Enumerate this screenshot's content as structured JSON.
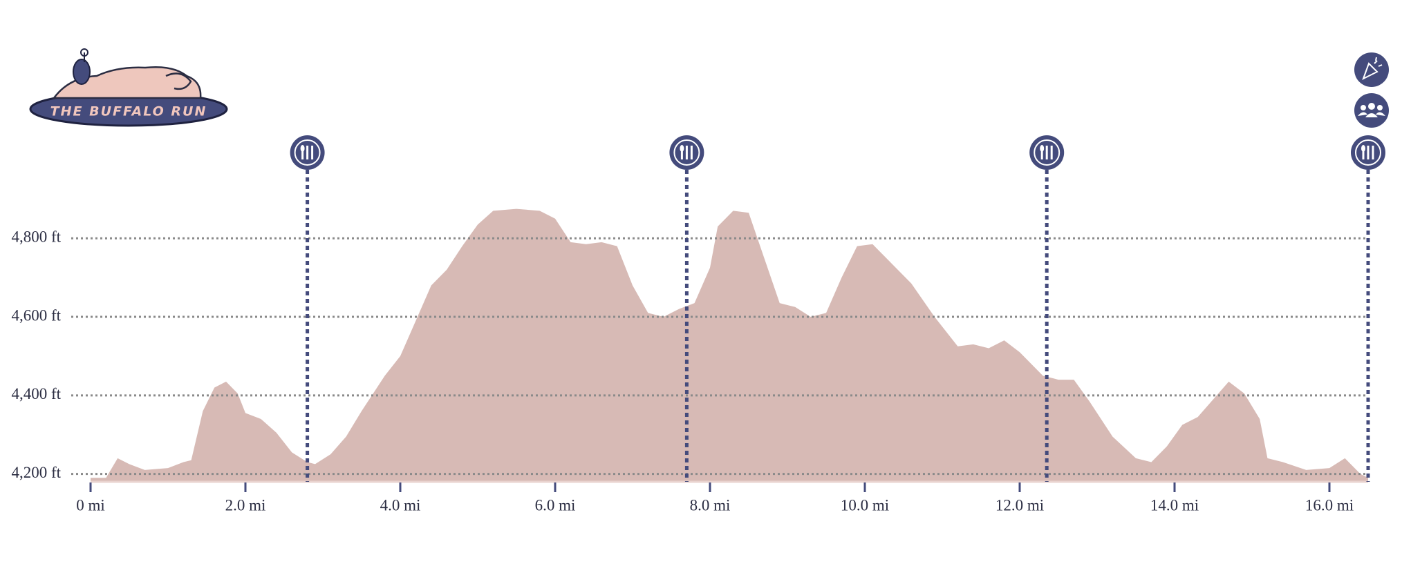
{
  "chart_data": {
    "type": "area",
    "logo_text": "THE BUFFALO RUN",
    "x": [
      0,
      0.2,
      0.35,
      0.5,
      0.7,
      1.0,
      1.2,
      1.3,
      1.45,
      1.6,
      1.75,
      1.9,
      2.0,
      2.2,
      2.4,
      2.6,
      2.8,
      2.9,
      3.1,
      3.3,
      3.5,
      3.8,
      4.0,
      4.2,
      4.4,
      4.6,
      4.8,
      5.0,
      5.2,
      5.5,
      5.8,
      6.0,
      6.2,
      6.4,
      6.6,
      6.8,
      7.0,
      7.2,
      7.4,
      7.6,
      7.8,
      8.0,
      8.1,
      8.3,
      8.5,
      8.7,
      8.9,
      9.1,
      9.3,
      9.5,
      9.7,
      9.9,
      10.1,
      10.3,
      10.6,
      10.9,
      11.2,
      11.4,
      11.6,
      11.8,
      12.0,
      12.3,
      12.5,
      12.7,
      12.9,
      13.2,
      13.5,
      13.7,
      13.9,
      14.1,
      14.3,
      14.5,
      14.7,
      14.9,
      15.1,
      15.2,
      15.4,
      15.7,
      16.0,
      16.2,
      16.4,
      16.5
    ],
    "values": [
      4190,
      4190,
      4240,
      4225,
      4210,
      4215,
      4230,
      4235,
      4360,
      4420,
      4435,
      4405,
      4355,
      4340,
      4305,
      4255,
      4230,
      4225,
      4250,
      4295,
      4360,
      4450,
      4500,
      4590,
      4680,
      4720,
      4780,
      4835,
      4870,
      4875,
      4870,
      4850,
      4790,
      4785,
      4790,
      4780,
      4680,
      4610,
      4600,
      4620,
      4635,
      4725,
      4830,
      4870,
      4865,
      4750,
      4635,
      4625,
      4600,
      4610,
      4700,
      4780,
      4785,
      4745,
      4685,
      4600,
      4525,
      4530,
      4520,
      4540,
      4510,
      4450,
      4440,
      4440,
      4385,
      4295,
      4240,
      4230,
      4270,
      4325,
      4345,
      4390,
      4435,
      4405,
      4340,
      4240,
      4230,
      4210,
      4215,
      4240,
      4200,
      4190
    ],
    "color": "#d7bab5",
    "marker_color": "#444b7c",
    "xlim": [
      0,
      16.5
    ],
    "ylim": [
      4180,
      5050
    ],
    "xticks": [
      {
        "value": 0,
        "label": "0 mi"
      },
      {
        "value": 2,
        "label": "2.0 mi"
      },
      {
        "value": 4,
        "label": "4.0 mi"
      },
      {
        "value": 6,
        "label": "6.0 mi"
      },
      {
        "value": 8,
        "label": "8.0 mi"
      },
      {
        "value": 10,
        "label": "10.0 mi"
      },
      {
        "value": 12,
        "label": "12.0 mi"
      },
      {
        "value": 14,
        "label": "14.0 mi"
      },
      {
        "value": 16,
        "label": "16.0 mi"
      }
    ],
    "yticks": [
      {
        "value": 4200,
        "label": "4,200 ft"
      },
      {
        "value": 4400,
        "label": "4,400 ft"
      },
      {
        "value": 4600,
        "label": "4,600 ft"
      },
      {
        "value": 4800,
        "label": "4,800 ft"
      }
    ],
    "grid": true,
    "markers": [
      {
        "x": 2.8,
        "icon": "aid"
      },
      {
        "x": 7.7,
        "icon": "aid"
      },
      {
        "x": 12.35,
        "icon": "aid"
      },
      {
        "x": 16.5,
        "icon": "aid"
      }
    ]
  }
}
